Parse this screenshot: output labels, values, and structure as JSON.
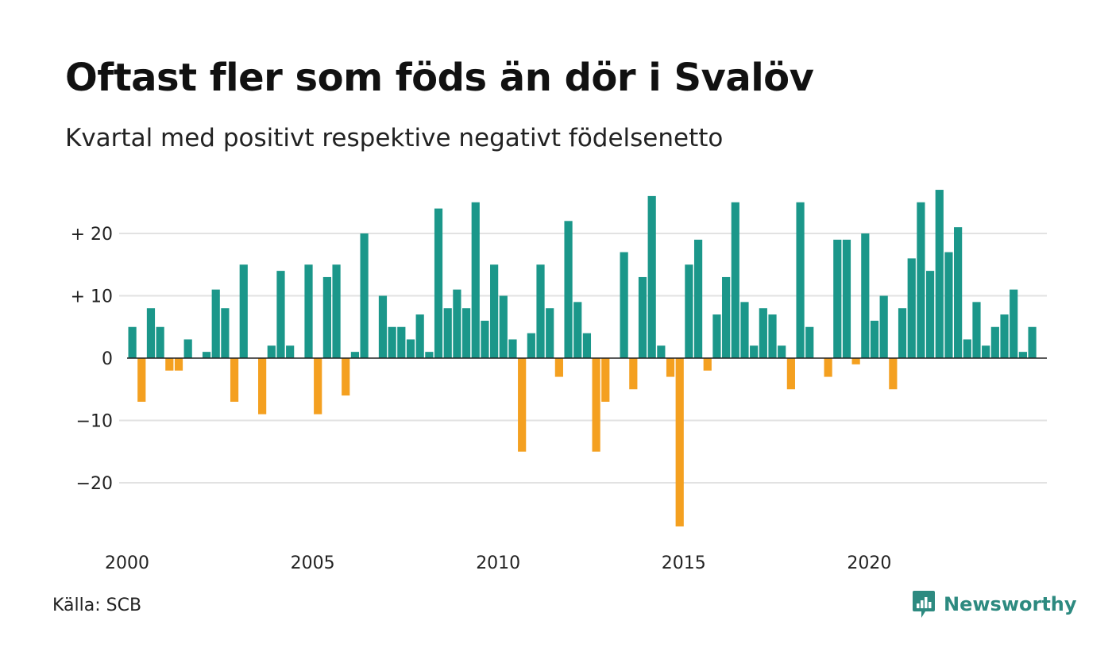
{
  "title": "Oftast fler som föds än dör i Svalöv",
  "subtitle": "Kvartal med positivt respektive negativt födelsenetto",
  "source": "Källa: SCB",
  "brand": "Newsworthy",
  "colors": {
    "positive": "#1b978a",
    "negative": "#f4a020",
    "grid": "#e2e2e2",
    "axis": "#222222",
    "brand": "#2d8a80"
  },
  "chart_data": {
    "type": "bar",
    "x_start": "2000 Q1",
    "x_ticks": [
      "2000",
      "2005",
      "2010",
      "2015",
      "2020"
    ],
    "y_ticks": [
      "+ 20",
      "+ 10",
      "0",
      "−10",
      "−20"
    ],
    "y_tick_values": [
      20,
      10,
      0,
      -10,
      -20
    ],
    "ylim": [
      -28,
      28
    ],
    "grid": true,
    "values": [
      5,
      -7,
      8,
      5,
      -2,
      -2,
      3,
      0,
      1,
      11,
      8,
      -7,
      15,
      0,
      -9,
      2,
      14,
      2,
      0,
      15,
      -9,
      13,
      15,
      -6,
      1,
      20,
      0,
      10,
      5,
      5,
      3,
      7,
      1,
      24,
      8,
      11,
      8,
      25,
      6,
      15,
      10,
      3,
      -15,
      4,
      15,
      8,
      -3,
      22,
      9,
      4,
      -15,
      -7,
      0,
      17,
      -5,
      13,
      26,
      2,
      -3,
      -27,
      15,
      19,
      -2,
      7,
      13,
      25,
      9,
      2,
      8,
      7,
      2,
      -5,
      25,
      5,
      0,
      -3,
      19,
      19,
      -1,
      20,
      6,
      10,
      -5,
      8,
      16,
      25,
      14,
      27,
      17,
      21,
      3,
      9,
      2,
      5,
      7,
      11,
      1,
      5
    ]
  }
}
